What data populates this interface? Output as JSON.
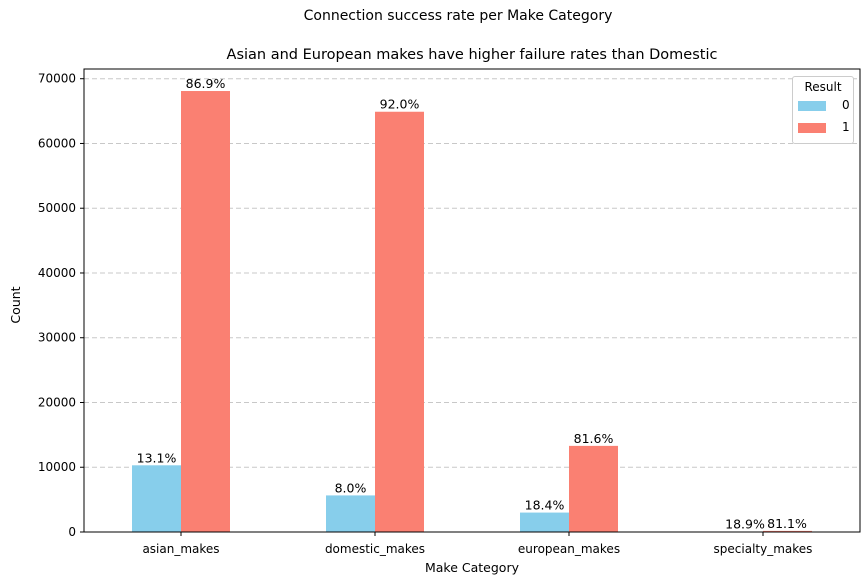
{
  "chart_data": {
    "type": "bar",
    "suptitle": "Connection success rate per Make Category",
    "title": "Asian and European makes have higher failure rates than Domestic",
    "xlabel": "Make Category",
    "ylabel": "Count",
    "categories": [
      "asian_makes",
      "domestic_makes",
      "european_makes",
      "specialty_makes"
    ],
    "legend_title": "Result",
    "legend_position": "top-right",
    "series": [
      {
        "name": "0",
        "color": "#87ceeb",
        "values": [
          10300,
          5650,
          3000,
          40
        ],
        "labels": [
          "13.1%",
          "8.0%",
          "18.4%",
          "18.9%"
        ]
      },
      {
        "name": "1",
        "color": "#fa8072",
        "values": [
          68100,
          64900,
          13300,
          170
        ],
        "labels": [
          "86.9%",
          "92.0%",
          "81.6%",
          "81.1%"
        ]
      }
    ],
    "yticks": [
      "0",
      "10000",
      "20000",
      "30000",
      "40000",
      "50000",
      "60000",
      "70000"
    ],
    "ylim": [
      0,
      71500
    ],
    "grid": "y-dashed"
  }
}
